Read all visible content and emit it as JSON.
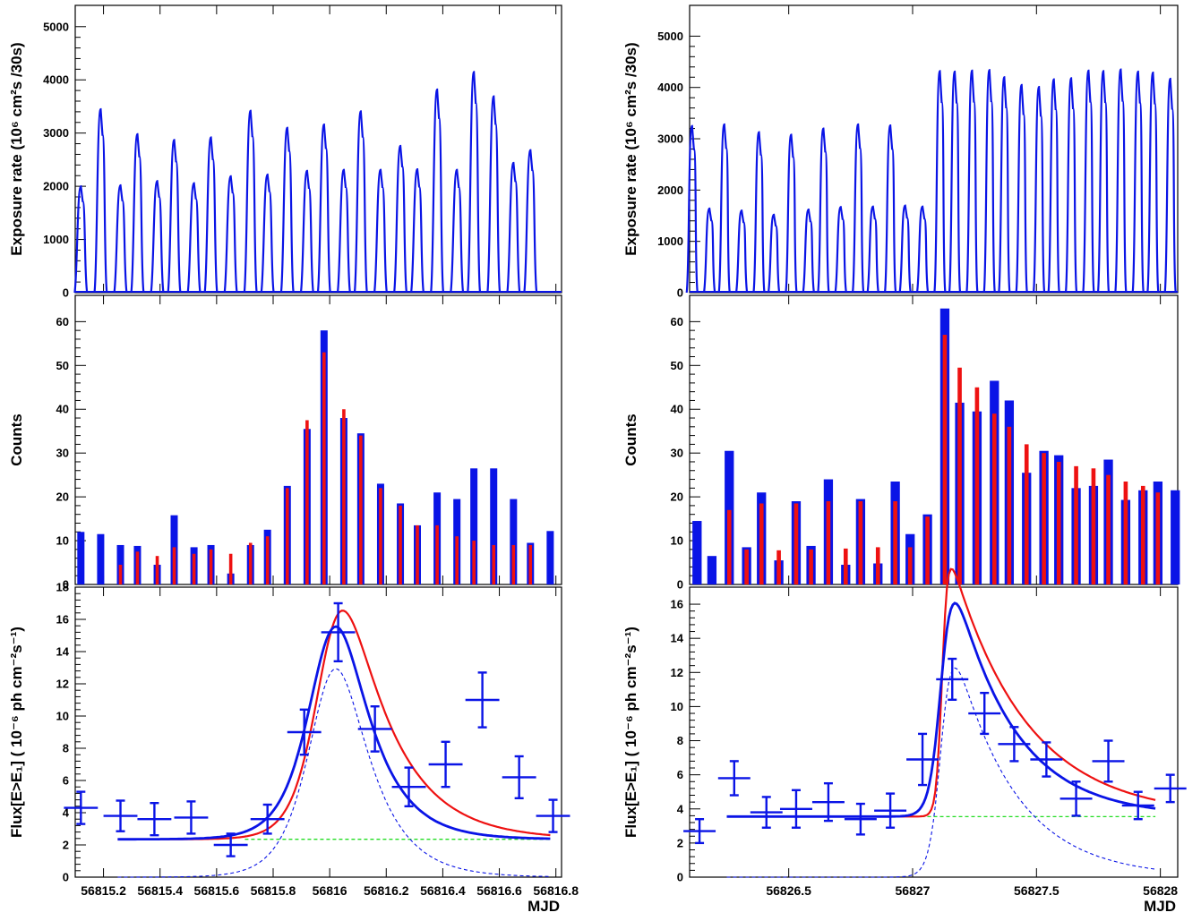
{
  "colors": {
    "blue": "#0a14e6",
    "red": "#ee1111",
    "green": "#22dd22",
    "axis": "#000000"
  },
  "panels": [
    {
      "id": "left",
      "xlim": [
        56815.1,
        56816.82
      ],
      "xlabel": "MJD",
      "xticks": [
        {
          "v": 56815.2,
          "label": "56815.2"
        },
        {
          "v": 56815.4,
          "label": "56815.4"
        },
        {
          "v": 56815.6,
          "label": "56815.6"
        },
        {
          "v": 56815.8,
          "label": "56815.8"
        },
        {
          "v": 56816.0,
          "label": "56816"
        },
        {
          "v": 56816.2,
          "label": "56816.2"
        },
        {
          "v": 56816.4,
          "label": "56816.4"
        },
        {
          "v": 56816.6,
          "label": "56816.6"
        },
        {
          "v": 56816.8,
          "label": "56816.8"
        }
      ],
      "exposure": {
        "ylabel": "Exposure rate (10⁶ cm²s /30s)",
        "ylim": [
          0,
          5400
        ],
        "yticks": [
          0,
          1000,
          2000,
          3000,
          4000,
          5000
        ],
        "peaks": [
          {
            "x": 56815.12,
            "h": 2000
          },
          {
            "x": 56815.19,
            "h": 3450
          },
          {
            "x": 56815.26,
            "h": 2020
          },
          {
            "x": 56815.32,
            "h": 2980
          },
          {
            "x": 56815.39,
            "h": 2100
          },
          {
            "x": 56815.45,
            "h": 2870
          },
          {
            "x": 56815.52,
            "h": 2060
          },
          {
            "x": 56815.58,
            "h": 2920
          },
          {
            "x": 56815.65,
            "h": 2190
          },
          {
            "x": 56815.72,
            "h": 3420
          },
          {
            "x": 56815.78,
            "h": 2220
          },
          {
            "x": 56815.85,
            "h": 3100
          },
          {
            "x": 56815.92,
            "h": 2290
          },
          {
            "x": 56815.98,
            "h": 3160
          },
          {
            "x": 56816.05,
            "h": 2310
          },
          {
            "x": 56816.11,
            "h": 3410
          },
          {
            "x": 56816.18,
            "h": 2310
          },
          {
            "x": 56816.25,
            "h": 2760
          },
          {
            "x": 56816.31,
            "h": 2320
          },
          {
            "x": 56816.38,
            "h": 3820
          },
          {
            "x": 56816.45,
            "h": 2310
          },
          {
            "x": 56816.51,
            "h": 4150
          },
          {
            "x": 56816.58,
            "h": 3690
          },
          {
            "x": 56816.65,
            "h": 2440
          },
          {
            "x": 56816.71,
            "h": 2680
          }
        ]
      },
      "counts": {
        "ylabel": "Counts",
        "ylim": [
          0,
          66
        ],
        "yticks": [
          0,
          10,
          20,
          30,
          40,
          50,
          60
        ],
        "bins": [
          {
            "x": 56815.12,
            "blue": 12,
            "red": 0
          },
          {
            "x": 56815.19,
            "blue": 11.5,
            "red": 0
          },
          {
            "x": 56815.26,
            "blue": 9,
            "red": 4.5
          },
          {
            "x": 56815.32,
            "blue": 8.8,
            "red": 7.5
          },
          {
            "x": 56815.39,
            "blue": 4.5,
            "red": 6.5
          },
          {
            "x": 56815.45,
            "blue": 15.8,
            "red": 8.5
          },
          {
            "x": 56815.52,
            "blue": 8.5,
            "red": 7
          },
          {
            "x": 56815.58,
            "blue": 9,
            "red": 8
          },
          {
            "x": 56815.65,
            "blue": 2.5,
            "red": 7
          },
          {
            "x": 56815.72,
            "blue": 9,
            "red": 9.5
          },
          {
            "x": 56815.78,
            "blue": 12.5,
            "red": 11
          },
          {
            "x": 56815.85,
            "blue": 22.5,
            "red": 22
          },
          {
            "x": 56815.92,
            "blue": 35.5,
            "red": 37.5
          },
          {
            "x": 56815.98,
            "blue": 58,
            "red": 53
          },
          {
            "x": 56816.05,
            "blue": 38,
            "red": 40
          },
          {
            "x": 56816.11,
            "blue": 34.5,
            "red": 34
          },
          {
            "x": 56816.18,
            "blue": 23,
            "red": 22
          },
          {
            "x": 56816.25,
            "blue": 18.5,
            "red": 18
          },
          {
            "x": 56816.31,
            "blue": 13.5,
            "red": 13.5
          },
          {
            "x": 56816.38,
            "blue": 21,
            "red": 13.5
          },
          {
            "x": 56816.45,
            "blue": 19.5,
            "red": 11
          },
          {
            "x": 56816.51,
            "blue": 26.5,
            "red": 10
          },
          {
            "x": 56816.58,
            "blue": 26.5,
            "red": 9
          },
          {
            "x": 56816.65,
            "blue": 19.5,
            "red": 9
          },
          {
            "x": 56816.71,
            "blue": 9.5,
            "red": 9
          },
          {
            "x": 56816.78,
            "blue": 12.2,
            "red": 0
          }
        ]
      },
      "flux": {
        "ylabel": "Flux[E>E₁] ( 10⁻⁶ ph cm⁻²s⁻¹)",
        "ylim": [
          0,
          18
        ],
        "yticks": [
          0,
          2,
          4,
          6,
          8,
          10,
          12,
          14,
          16,
          18
        ],
        "points": [
          {
            "x": 56815.12,
            "xerr": 0.06,
            "y": 4.3,
            "yerr": 1.0
          },
          {
            "x": 56815.26,
            "xerr": 0.06,
            "y": 3.8,
            "yerr": 0.95
          },
          {
            "x": 56815.38,
            "xerr": 0.06,
            "y": 3.6,
            "yerr": 1.0
          },
          {
            "x": 56815.51,
            "xerr": 0.06,
            "y": 3.7,
            "yerr": 1.0
          },
          {
            "x": 56815.65,
            "xerr": 0.06,
            "y": 2.0,
            "yerr": 0.7
          },
          {
            "x": 56815.78,
            "xerr": 0.06,
            "y": 3.6,
            "yerr": 0.9
          },
          {
            "x": 56815.91,
            "xerr": 0.06,
            "y": 9.0,
            "yerr": 1.4
          },
          {
            "x": 56816.03,
            "xerr": 0.06,
            "y": 15.2,
            "yerr": 1.8
          },
          {
            "x": 56816.16,
            "xerr": 0.06,
            "y": 9.2,
            "yerr": 1.4
          },
          {
            "x": 56816.28,
            "xerr": 0.06,
            "y": 5.6,
            "yerr": 1.2
          },
          {
            "x": 56816.41,
            "xerr": 0.06,
            "y": 7.0,
            "yerr": 1.4
          },
          {
            "x": 56816.54,
            "xerr": 0.06,
            "y": 11.0,
            "yerr": 1.7
          },
          {
            "x": 56816.67,
            "xerr": 0.06,
            "y": 6.2,
            "yerr": 1.3
          },
          {
            "x": 56816.79,
            "xerr": 0.06,
            "y": 3.8,
            "yerr": 1.0
          }
        ],
        "fit": {
          "t0": 56816.0,
          "base": 2.35,
          "blue_amp": 12.85,
          "blue_rise": 0.075,
          "blue_decay": 0.12,
          "red_amp": 12.6,
          "red_rise": 0.06,
          "red_decay": 0.17,
          "xstart": 56815.25,
          "xend": 56816.78,
          "base_start": 56815.7
        }
      }
    },
    {
      "id": "right",
      "xlim": [
        56826.1,
        56828.07
      ],
      "xlabel": "MJD",
      "xticks": [
        {
          "v": 56826.5,
          "label": "56826.5"
        },
        {
          "v": 56827.0,
          "label": "56827"
        },
        {
          "v": 56827.5,
          "label": "56827.5"
        },
        {
          "v": 56828.0,
          "label": "56828"
        }
      ],
      "exposure": {
        "ylabel": "Exposure rate (10⁶ cm²s /30s)",
        "ylim": [
          0,
          5600
        ],
        "yticks": [
          0,
          1000,
          2000,
          3000,
          4000,
          5000
        ],
        "peaks": [
          {
            "x": 56826.11,
            "h": 3250
          },
          {
            "x": 56826.18,
            "h": 1640
          },
          {
            "x": 56826.24,
            "h": 3280
          },
          {
            "x": 56826.31,
            "h": 1600
          },
          {
            "x": 56826.38,
            "h": 3130
          },
          {
            "x": 56826.44,
            "h": 1520
          },
          {
            "x": 56826.51,
            "h": 3080
          },
          {
            "x": 56826.58,
            "h": 1620
          },
          {
            "x": 56826.64,
            "h": 3200
          },
          {
            "x": 56826.71,
            "h": 1670
          },
          {
            "x": 56826.78,
            "h": 3280
          },
          {
            "x": 56826.84,
            "h": 1680
          },
          {
            "x": 56826.91,
            "h": 3260
          },
          {
            "x": 56826.97,
            "h": 1700
          },
          {
            "x": 56827.04,
            "h": 1680
          },
          {
            "x": 56827.11,
            "h": 4320
          },
          {
            "x": 56827.17,
            "h": 4310
          },
          {
            "x": 56827.24,
            "h": 4330
          },
          {
            "x": 56827.31,
            "h": 4340
          },
          {
            "x": 56827.37,
            "h": 4200
          },
          {
            "x": 56827.44,
            "h": 4050
          },
          {
            "x": 56827.51,
            "h": 4010
          },
          {
            "x": 56827.57,
            "h": 4160
          },
          {
            "x": 56827.64,
            "h": 4180
          },
          {
            "x": 56827.71,
            "h": 4330
          },
          {
            "x": 56827.77,
            "h": 4320
          },
          {
            "x": 56827.84,
            "h": 4350
          },
          {
            "x": 56827.91,
            "h": 4310
          },
          {
            "x": 56827.97,
            "h": 4290
          },
          {
            "x": 56828.04,
            "h": 4170
          }
        ]
      },
      "counts": {
        "ylabel": "Counts",
        "ylim": [
          0,
          66
        ],
        "yticks": [
          0,
          10,
          20,
          30,
          40,
          50,
          60
        ],
        "bins": [
          {
            "x": 56826.13,
            "blue": 14.5,
            "red": 0
          },
          {
            "x": 56826.19,
            "blue": 6.5,
            "red": 0
          },
          {
            "x": 56826.26,
            "blue": 30.5,
            "red": 17
          },
          {
            "x": 56826.33,
            "blue": 8.5,
            "red": 8
          },
          {
            "x": 56826.39,
            "blue": 21,
            "red": 18.5
          },
          {
            "x": 56826.46,
            "blue": 5.5,
            "red": 7.8
          },
          {
            "x": 56826.53,
            "blue": 19,
            "red": 18.5
          },
          {
            "x": 56826.59,
            "blue": 8.8,
            "red": 8
          },
          {
            "x": 56826.66,
            "blue": 24,
            "red": 19
          },
          {
            "x": 56826.73,
            "blue": 4.5,
            "red": 8.2
          },
          {
            "x": 56826.79,
            "blue": 19.5,
            "red": 19
          },
          {
            "x": 56826.86,
            "blue": 4.8,
            "red": 8.5
          },
          {
            "x": 56826.93,
            "blue": 23.5,
            "red": 19
          },
          {
            "x": 56826.99,
            "blue": 11.5,
            "red": 8.5
          },
          {
            "x": 56827.06,
            "blue": 16,
            "red": 15.5
          },
          {
            "x": 56827.13,
            "blue": 63,
            "red": 57
          },
          {
            "x": 56827.19,
            "blue": 41.5,
            "red": 49.5
          },
          {
            "x": 56827.26,
            "blue": 39.5,
            "red": 45
          },
          {
            "x": 56827.33,
            "blue": 46.5,
            "red": 39
          },
          {
            "x": 56827.39,
            "blue": 42,
            "red": 36
          },
          {
            "x": 56827.46,
            "blue": 25.5,
            "red": 32
          },
          {
            "x": 56827.53,
            "blue": 30.5,
            "red": 30
          },
          {
            "x": 56827.59,
            "blue": 29.5,
            "red": 28
          },
          {
            "x": 56827.66,
            "blue": 22,
            "red": 27
          },
          {
            "x": 56827.73,
            "blue": 22.5,
            "red": 26.5
          },
          {
            "x": 56827.79,
            "blue": 28.5,
            "red": 25
          },
          {
            "x": 56827.86,
            "blue": 19.3,
            "red": 23.5
          },
          {
            "x": 56827.93,
            "blue": 21.5,
            "red": 22.5
          },
          {
            "x": 56827.99,
            "blue": 23.5,
            "red": 21
          },
          {
            "x": 56828.06,
            "blue": 21.5,
            "red": 0
          }
        ]
      },
      "flux": {
        "ylabel": "Flux[E>E₁] ( 10⁻⁶ ph cm⁻²s⁻¹)",
        "ylim": [
          0,
          17
        ],
        "yticks": [
          0,
          2,
          4,
          6,
          8,
          10,
          12,
          14,
          16
        ],
        "points": [
          {
            "x": 56826.14,
            "xerr": 0.065,
            "y": 2.7,
            "yerr": 0.7
          },
          {
            "x": 56826.28,
            "xerr": 0.065,
            "y": 5.8,
            "yerr": 1.0
          },
          {
            "x": 56826.41,
            "xerr": 0.065,
            "y": 3.8,
            "yerr": 0.9
          },
          {
            "x": 56826.53,
            "xerr": 0.065,
            "y": 4.0,
            "yerr": 1.1
          },
          {
            "x": 56826.66,
            "xerr": 0.065,
            "y": 4.4,
            "yerr": 1.1
          },
          {
            "x": 56826.79,
            "xerr": 0.065,
            "y": 3.4,
            "yerr": 0.9
          },
          {
            "x": 56826.91,
            "xerr": 0.065,
            "y": 3.9,
            "yerr": 1.0
          },
          {
            "x": 56827.04,
            "xerr": 0.065,
            "y": 6.9,
            "yerr": 1.5
          },
          {
            "x": 56827.16,
            "xerr": 0.065,
            "y": 11.6,
            "yerr": 1.2
          },
          {
            "x": 56827.29,
            "xerr": 0.065,
            "y": 9.6,
            "yerr": 1.2
          },
          {
            "x": 56827.41,
            "xerr": 0.065,
            "y": 7.8,
            "yerr": 1.0
          },
          {
            "x": 56827.54,
            "xerr": 0.065,
            "y": 6.9,
            "yerr": 1.0
          },
          {
            "x": 56827.66,
            "xerr": 0.065,
            "y": 4.6,
            "yerr": 1.0
          },
          {
            "x": 56827.79,
            "xerr": 0.065,
            "y": 6.8,
            "yerr": 1.2
          },
          {
            "x": 56827.91,
            "xerr": 0.065,
            "y": 4.2,
            "yerr": 0.8
          },
          {
            "x": 56828.04,
            "xerr": 0.065,
            "y": 5.2,
            "yerr": 0.8
          }
        ],
        "fit": {
          "t0": 56827.12,
          "base": 3.55,
          "blue_amp": 8.55,
          "blue_rise": 0.025,
          "blue_decay": 0.24,
          "red_amp": 8.55,
          "red_rise": 0.012,
          "red_decay": 0.3,
          "xstart": 56826.25,
          "xend": 56827.98,
          "base_start": 56826.25
        }
      }
    }
  ]
}
